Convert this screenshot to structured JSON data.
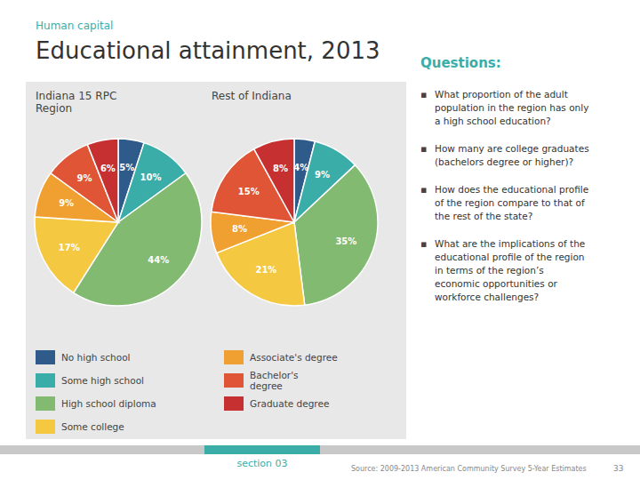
{
  "title": "Educational attainment, 2013",
  "subtitle": "Human capital",
  "questions_title": "Questions:",
  "bullet": "▪",
  "questions": [
    "What proportion of the adult\npopulation in the region has only\na high school education?",
    "How many are college graduates\n(bachelors degree or higher)?",
    "How does the educational profile\nof the region compare to that of\nthe rest of the state?",
    "What are the implications of the\neducational profile of the region\nin terms of the region’s\neconomic opportunities or\nworkforce challenges?"
  ],
  "footer": "section 03",
  "source": "Source: 2009-2013 American Community Survey 5-Year Estimates",
  "page_number": "33",
  "chart_data": [
    {
      "type": "pie",
      "title": "Indiana 15 RPC\nRegion",
      "categories": [
        "No high school",
        "Some high school",
        "High school diploma",
        "Some college",
        "Associate's degree",
        "Bachelor's\ndegree",
        "Graduate degree"
      ],
      "values": [
        5,
        10,
        44,
        17,
        9,
        9,
        6
      ],
      "value_labels": [
        "5%",
        "10%",
        "44%",
        "17%",
        "9%",
        "9%",
        "6%"
      ],
      "colors": [
        "#2e5b8a",
        "#3aada8",
        "#82ba72",
        "#f5c842",
        "#f0a030",
        "#e05535",
        "#c63030"
      ],
      "data_labels": true,
      "legend": "bottom"
    },
    {
      "type": "pie",
      "title": "Rest of Indiana",
      "values": [
        4,
        9,
        35,
        21,
        8,
        15,
        8
      ],
      "value_labels": [
        "4%",
        "9%",
        "35%",
        "21%",
        "8%",
        "15%",
        "8%"
      ],
      "colors": [
        "#2e5b8a",
        "#3aada8",
        "#82ba72",
        "#f5c842",
        "#f0a030",
        "#e05535",
        "#c63030"
      ],
      "data_labels": true
    }
  ]
}
